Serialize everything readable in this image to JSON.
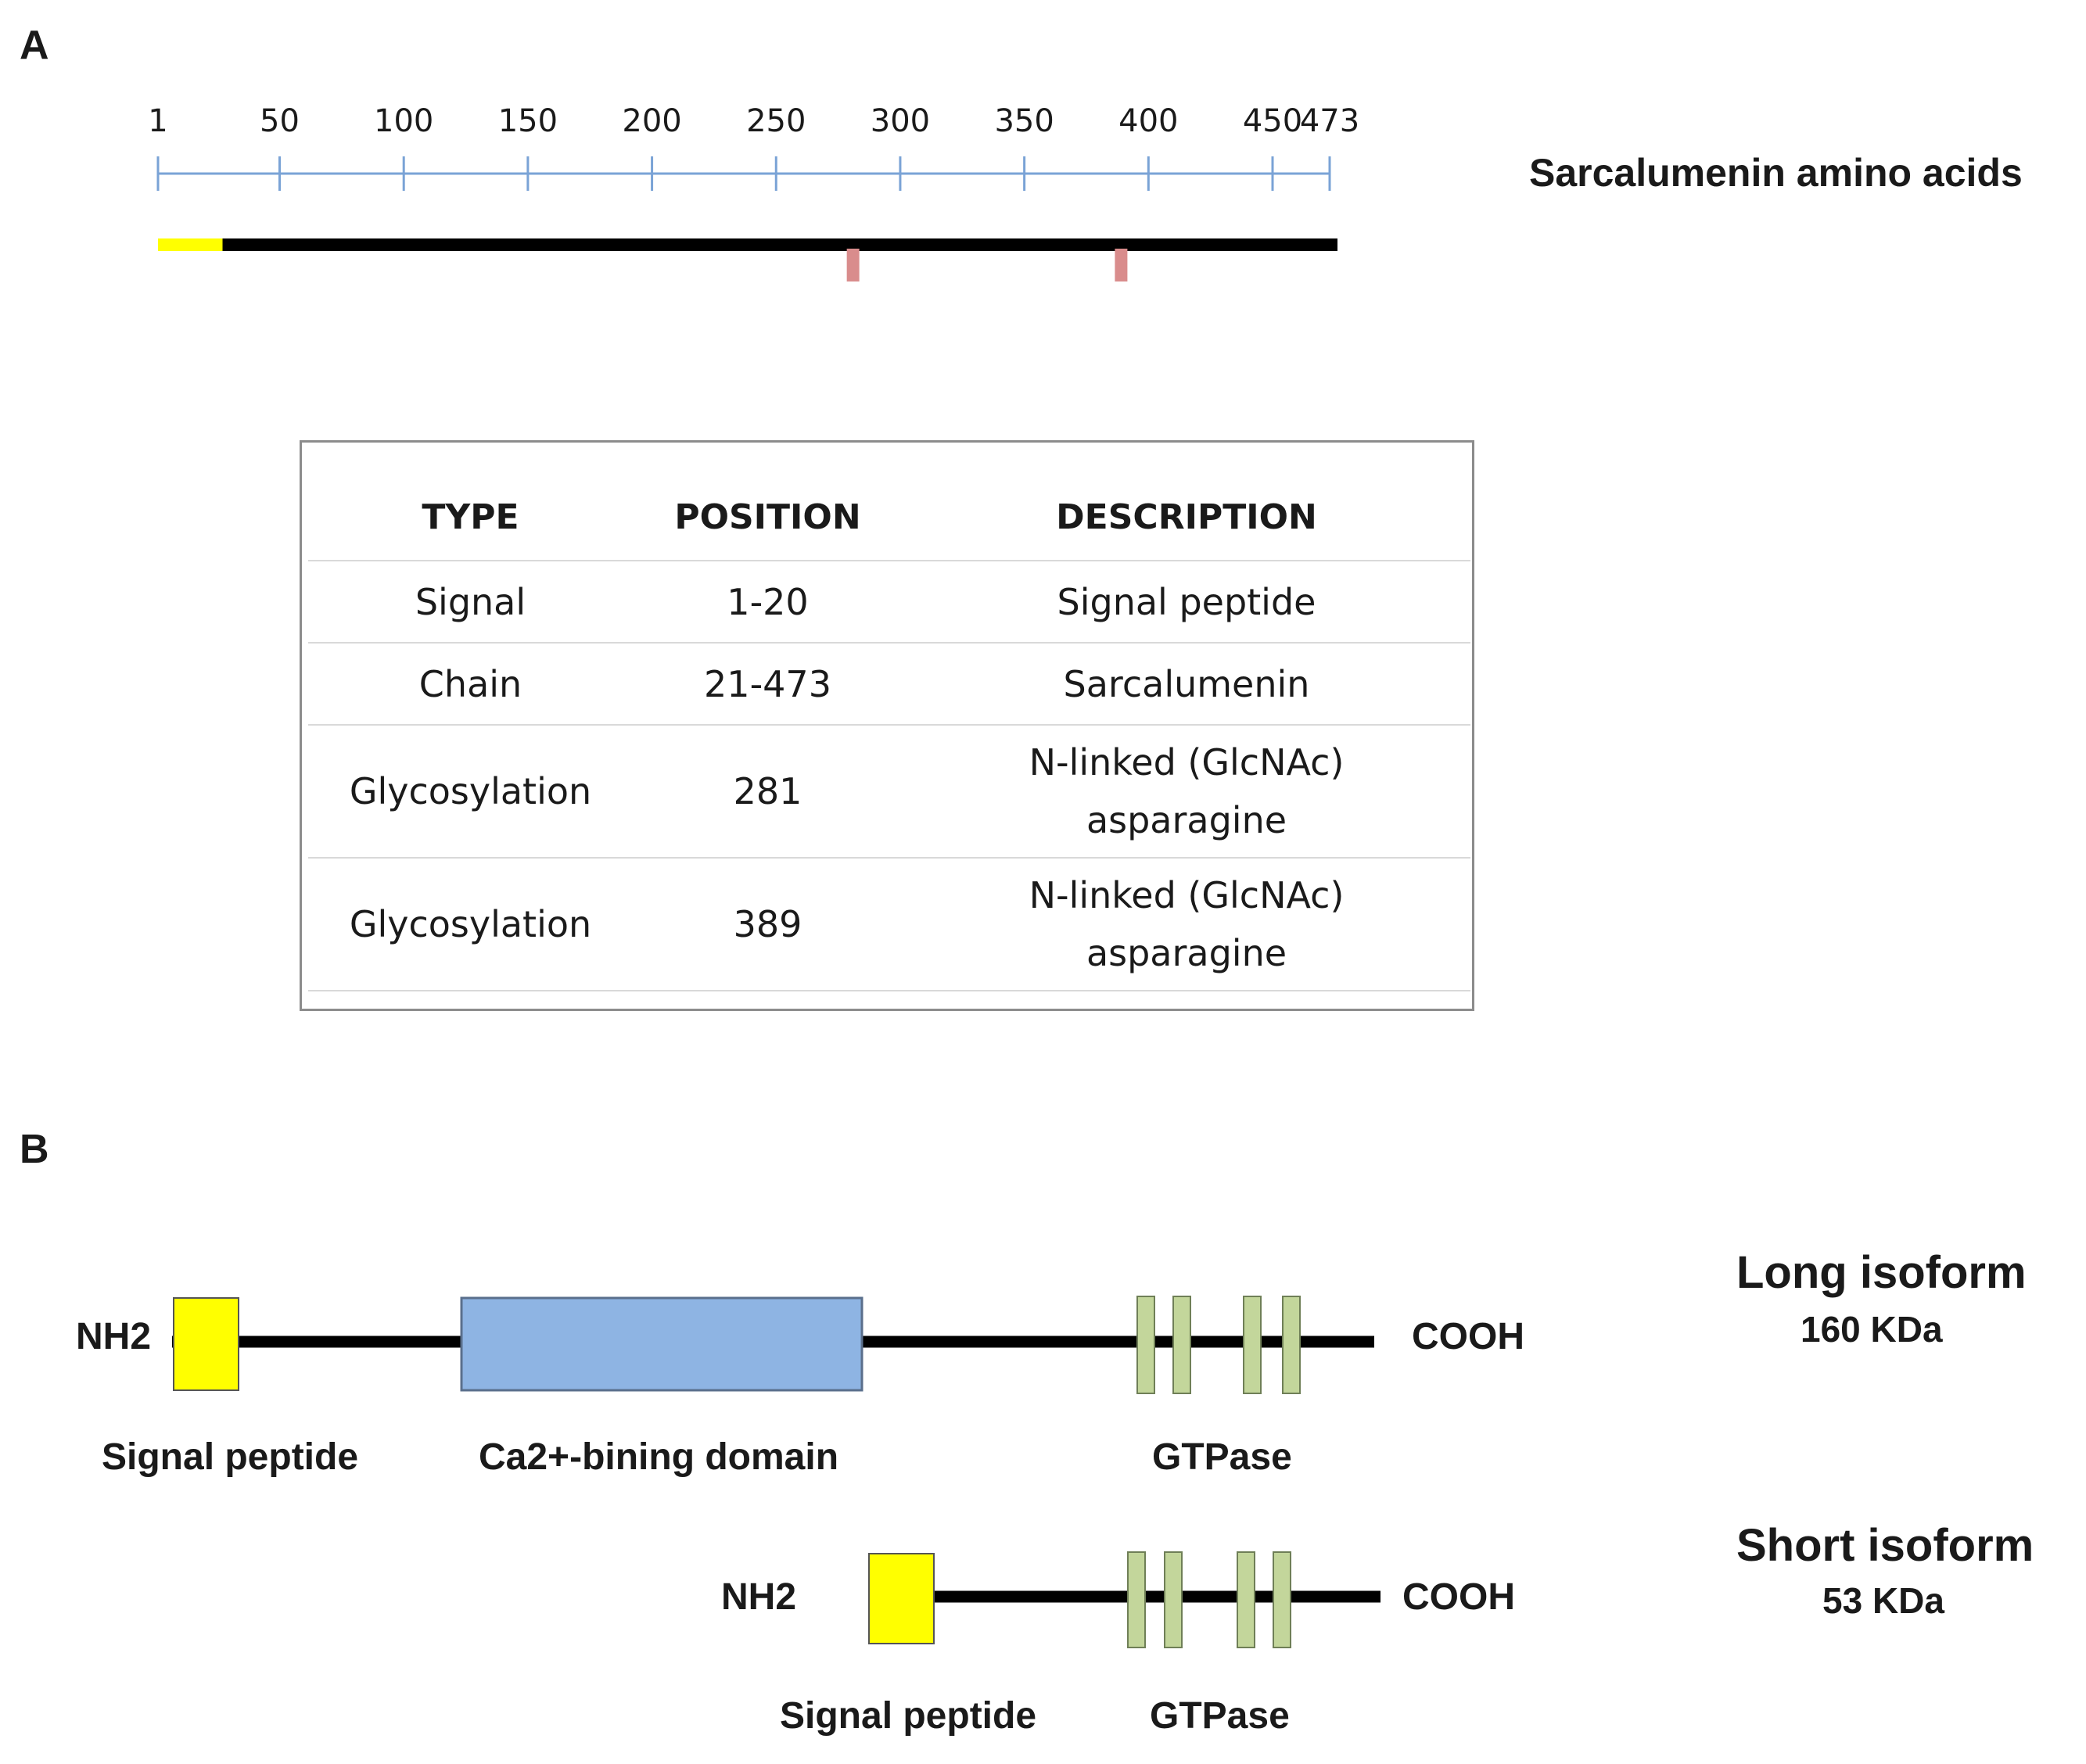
{
  "panels": {
    "a": "A",
    "b": "B"
  },
  "ruler": {
    "title": "Sarcalumenin amino acids",
    "ticks": [
      "1",
      "50",
      "100",
      "150",
      "200",
      "250",
      "300",
      "350",
      "400",
      "450",
      "473"
    ],
    "tick_values": [
      1,
      50,
      100,
      150,
      200,
      250,
      300,
      350,
      400,
      450,
      473
    ],
    "signal_range": [
      1,
      20
    ],
    "glycosylation_sites": [
      281,
      389
    ]
  },
  "colors": {
    "ruler": "#7aa3d6",
    "signal": "#ffff00",
    "chain": "#000000",
    "glyco": "#d98c8c",
    "ca_domain": "#8eb4e3",
    "gtpase": "#c3d69b"
  },
  "table": {
    "headers": [
      "TYPE",
      "POSITION",
      "DESCRIPTION"
    ],
    "rows": [
      {
        "type": "Signal",
        "position": "1-20",
        "description_lines": [
          "Signal peptide"
        ]
      },
      {
        "type": "Chain",
        "position": "21-473",
        "description_lines": [
          "Sarcalumenin"
        ]
      },
      {
        "type": "Glycosylation",
        "position": "281",
        "description_lines": [
          "N-linked (GlcNAc)",
          "asparagine"
        ]
      },
      {
        "type": "Glycosylation",
        "position": "389",
        "description_lines": [
          "N-linked (GlcNAc)",
          "asparagine"
        ]
      }
    ]
  },
  "long_isoform": {
    "name": "Long isoform",
    "mass": "160 KDa",
    "nterm": "NH2",
    "cterm": "COOH",
    "labels": {
      "signal": "Signal peptide",
      "ca": "Ca2+-bining domain",
      "gtpase": "GTPase"
    }
  },
  "short_isoform": {
    "name": "Short isoform",
    "mass": "53 KDa",
    "nterm": "NH2",
    "cterm": "COOH",
    "labels": {
      "signal": "Signal peptide",
      "gtpase": "GTPase"
    }
  }
}
